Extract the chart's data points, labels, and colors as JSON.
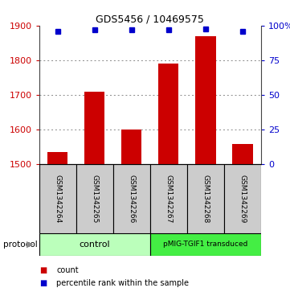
{
  "title": "GDS5456 / 10469575",
  "samples": [
    "GSM1342264",
    "GSM1342265",
    "GSM1342266",
    "GSM1342267",
    "GSM1342268",
    "GSM1342269"
  ],
  "counts": [
    1535,
    1710,
    1600,
    1790,
    1870,
    1560
  ],
  "percentile_ranks": [
    96,
    97,
    97,
    97,
    97.5,
    96
  ],
  "ylim_left": [
    1500,
    1900
  ],
  "ylim_right": [
    0,
    100
  ],
  "yticks_left": [
    1500,
    1600,
    1700,
    1800,
    1900
  ],
  "yticks_right": [
    0,
    25,
    50,
    75,
    100
  ],
  "grid_lines": [
    1600,
    1700,
    1800
  ],
  "bar_color": "#cc0000",
  "dot_color": "#0000cc",
  "bg_color": "#ffffff",
  "sample_box_color": "#cccccc",
  "control_color": "#bbffbb",
  "pmig_color": "#44ee44",
  "left_tick_color": "#cc0000",
  "right_tick_color": "#0000cc",
  "title_fontsize": 9,
  "tick_fontsize": 8,
  "sample_fontsize": 6.5,
  "proto_fontsize": 8,
  "legend_fontsize": 7,
  "bar_width": 0.55
}
